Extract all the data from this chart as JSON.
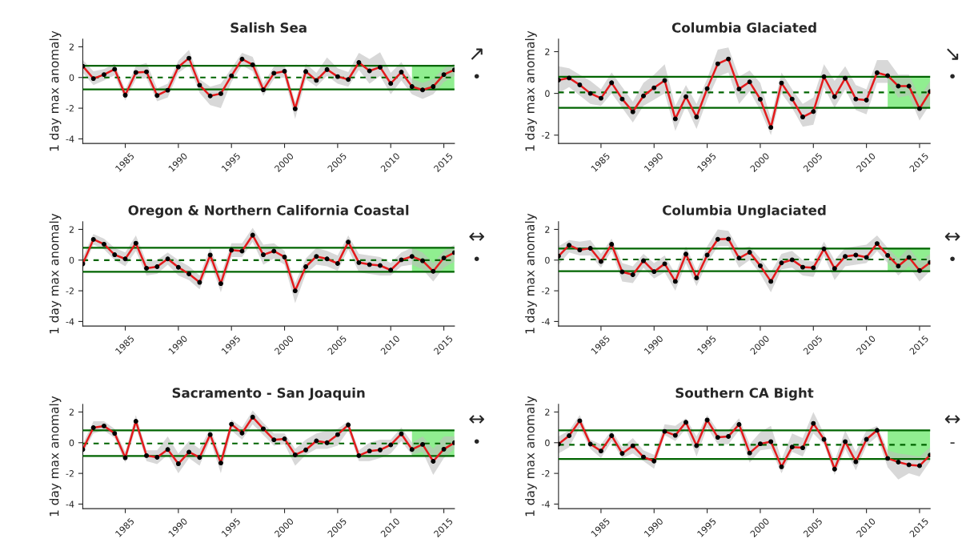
{
  "chart_data": [
    {
      "type": "line",
      "title": "Salish Sea",
      "ylabel": "1 day max anomaly",
      "x": [
        1981,
        1982,
        1983,
        1984,
        1985,
        1986,
        1987,
        1988,
        1989,
        1990,
        1991,
        1992,
        1993,
        1994,
        1995,
        1996,
        1997,
        1998,
        1999,
        2000,
        2001,
        2002,
        2003,
        2004,
        2005,
        2006,
        2007,
        2008,
        2009,
        2010,
        2011,
        2012,
        2013,
        2014,
        2015,
        2016
      ],
      "xlim": [
        1981,
        2016
      ],
      "xticks": [
        1985,
        1990,
        1995,
        2000,
        2005,
        2010,
        2015
      ],
      "ylim": [
        -4.3,
        2.5
      ],
      "yticks": [
        -4,
        -2,
        0,
        2
      ],
      "marker": "circle",
      "grid": false,
      "series": [
        {
          "color": "#e41a1c",
          "values": [
            0.74,
            -0.07,
            0.19,
            0.54,
            -1.15,
            0.33,
            0.37,
            -1.17,
            -0.83,
            0.69,
            1.26,
            -0.5,
            -1.2,
            -1.05,
            0.11,
            1.2,
            0.83,
            -0.8,
            0.28,
            0.41,
            -2.04,
            0.39,
            -0.19,
            0.52,
            0.06,
            -0.13,
            0.98,
            0.43,
            0.67,
            -0.39,
            0.35,
            -0.59,
            -0.81,
            -0.59,
            0.19,
            0.5
          ],
          "upper": [
            1.15,
            0.4,
            0.55,
            0.9,
            -0.8,
            0.75,
            0.95,
            -0.7,
            -0.4,
            1.1,
            1.8,
            -0.1,
            -0.6,
            -0.4,
            0.6,
            1.6,
            1.35,
            -0.4,
            0.7,
            0.8,
            -1.6,
            0.9,
            0.3,
            1.3,
            0.6,
            0.35,
            1.6,
            1.2,
            1.65,
            0.3,
            1.0,
            -0.1,
            -0.35,
            -0.1,
            0.6,
            0.9
          ],
          "lower": [
            0.3,
            -0.5,
            -0.2,
            0.15,
            -1.5,
            -0.1,
            -0.05,
            -1.55,
            -1.3,
            0.3,
            0.8,
            -1.0,
            -1.8,
            -2.0,
            -0.3,
            0.8,
            0.4,
            -1.2,
            -0.1,
            0.0,
            -2.7,
            -0.1,
            -0.6,
            0.1,
            -0.4,
            -0.6,
            0.5,
            -0.4,
            0.1,
            -1.1,
            -0.2,
            -1.1,
            -1.4,
            -1.1,
            -0.3,
            0.1
          ]
        }
      ],
      "ref_lines": [
        {
          "axis": "y",
          "value": 0.76,
          "color": "#006400",
          "line_style": "solid"
        },
        {
          "axis": "y",
          "value": 0,
          "color": "#006400",
          "line_style": "dashed"
        },
        {
          "axis": "y",
          "value": -0.78,
          "color": "#006400",
          "line_style": "solid"
        }
      ],
      "bands": [
        {
          "axis": "x",
          "from": 2012,
          "to": 2016,
          "color": "#90ee90"
        }
      ],
      "annotations": [
        "↗",
        "•"
      ]
    },
    {
      "type": "line",
      "title": "Columbia Glaciated",
      "ylabel": "1 day max anomaly",
      "x": [
        1981,
        1982,
        1983,
        1984,
        1985,
        1986,
        1987,
        1988,
        1989,
        1990,
        1991,
        1992,
        1993,
        1994,
        1995,
        1996,
        1997,
        1998,
        1999,
        2000,
        2001,
        2002,
        2003,
        2004,
        2005,
        2006,
        2007,
        2008,
        2009,
        2010,
        2011,
        2012,
        2013,
        2014,
        2015,
        2016
      ],
      "xlim": [
        1981,
        2016
      ],
      "xticks": [
        1985,
        1990,
        1995,
        2000,
        2005,
        2010,
        2015
      ],
      "ylim": [
        -2.4,
        2.6
      ],
      "yticks": [
        -2,
        0,
        2
      ],
      "marker": "circle",
      "grid": false,
      "series": [
        {
          "color": "#e41a1c",
          "values": [
            0.64,
            0.74,
            0.41,
            0,
            -0.23,
            0.51,
            -0.27,
            -0.88,
            -0.12,
            0.27,
            0.62,
            -1.22,
            -0.16,
            -1.13,
            0.23,
            1.42,
            1.65,
            0.21,
            0.55,
            -0.28,
            -1.63,
            0.5,
            -0.27,
            -1.13,
            -0.87,
            0.8,
            -0.16,
            0.73,
            -0.27,
            -0.32,
            0.99,
            0.85,
            0.35,
            0.35,
            -0.73,
            0.09
          ],
          "upper": [
            1.3,
            1.2,
            0.9,
            0.6,
            0.2,
            1.0,
            0.3,
            -0.4,
            0.5,
            0.9,
            1.4,
            -0.6,
            0.4,
            -0.5,
            0.7,
            2.1,
            2.2,
            0.8,
            1.1,
            0.5,
            -1.2,
            1.0,
            0.2,
            -0.5,
            -0.2,
            1.4,
            0.6,
            1.3,
            0.4,
            0.2,
            1.6,
            1.6,
            0.9,
            0.9,
            -0.2,
            0.6
          ],
          "lower": [
            0.0,
            0.3,
            -0.1,
            -0.5,
            -0.6,
            0.0,
            -0.7,
            -1.4,
            -0.6,
            -0.3,
            0.0,
            -1.8,
            -0.6,
            -1.7,
            -0.3,
            0.8,
            1.0,
            -0.5,
            0.1,
            -0.8,
            -2.0,
            0.0,
            -0.7,
            -1.6,
            -1.5,
            0.3,
            -0.7,
            0.2,
            -0.8,
            -1.0,
            0.5,
            0.5,
            -0.2,
            -0.1,
            -1.3,
            -0.5
          ]
        }
      ],
      "ref_lines": [
        {
          "axis": "y",
          "value": 0.8,
          "color": "#006400",
          "line_style": "solid"
        },
        {
          "axis": "y",
          "value": 0.05,
          "color": "#006400",
          "line_style": "dashed"
        },
        {
          "axis": "y",
          "value": -0.69,
          "color": "#006400",
          "line_style": "solid"
        }
      ],
      "bands": [
        {
          "axis": "x",
          "from": 2012,
          "to": 2016,
          "color": "#90ee90"
        }
      ],
      "annotations": [
        "↘",
        "•"
      ]
    },
    {
      "type": "line",
      "title": "Oregon & Northern California Coastal",
      "ylabel": "1 day max anomaly",
      "x": [
        1981,
        1982,
        1983,
        1984,
        1985,
        1986,
        1987,
        1988,
        1989,
        1990,
        1991,
        1992,
        1993,
        1994,
        1995,
        1996,
        1997,
        1998,
        1999,
        2000,
        2001,
        2002,
        2003,
        2004,
        2005,
        2006,
        2007,
        2008,
        2009,
        2010,
        2011,
        2012,
        2013,
        2014,
        2015,
        2016
      ],
      "xlim": [
        1981,
        2016
      ],
      "xticks": [
        1985,
        1990,
        1995,
        2000,
        2005,
        2010,
        2015
      ],
      "ylim": [
        -4.3,
        2.5
      ],
      "yticks": [
        -4,
        -2,
        0,
        2
      ],
      "marker": "circle",
      "grid": false,
      "series": [
        {
          "color": "#e41a1c",
          "values": [
            -0.24,
            1.35,
            1.04,
            0.35,
            0.08,
            1.1,
            -0.53,
            -0.43,
            0.08,
            -0.47,
            -0.9,
            -1.45,
            0.33,
            -1.53,
            0.65,
            0.59,
            1.63,
            0.35,
            0.59,
            0.2,
            -2.0,
            -0.43,
            0.24,
            0.08,
            -0.22,
            1.18,
            -0.16,
            -0.29,
            -0.35,
            -0.65,
            0.02,
            0.24,
            -0.04,
            -0.73,
            0.14,
            0.49
          ],
          "upper": [
            0.2,
            1.7,
            1.4,
            0.8,
            0.5,
            1.6,
            -0.1,
            0.0,
            0.5,
            0.0,
            -0.4,
            -1.0,
            0.8,
            -1.0,
            1.1,
            1.1,
            2.1,
            1.0,
            1.1,
            0.6,
            -1.5,
            0.1,
            0.8,
            0.6,
            0.3,
            1.6,
            0.4,
            0.3,
            0.2,
            -0.2,
            0.5,
            0.8,
            0.5,
            -0.2,
            0.6,
            1.0
          ],
          "lower": [
            -0.6,
            1.0,
            0.7,
            0.0,
            -0.4,
            0.6,
            -1.0,
            -0.9,
            -0.3,
            -1.0,
            -1.3,
            -1.9,
            -0.1,
            -2.1,
            0.2,
            0.2,
            1.2,
            -0.3,
            0.1,
            -0.3,
            -2.8,
            -0.9,
            -0.3,
            -0.4,
            -0.7,
            0.7,
            -0.8,
            -0.9,
            -1.0,
            -1.0,
            -0.4,
            -0.3,
            -0.6,
            -1.4,
            -0.5,
            -0.1
          ]
        }
      ],
      "ref_lines": [
        {
          "axis": "y",
          "value": 0.8,
          "color": "#006400",
          "line_style": "solid"
        },
        {
          "axis": "y",
          "value": 0,
          "color": "#006400",
          "line_style": "dashed"
        },
        {
          "axis": "y",
          "value": -0.76,
          "color": "#006400",
          "line_style": "solid"
        }
      ],
      "bands": [
        {
          "axis": "x",
          "from": 2012,
          "to": 2016,
          "color": "#90ee90"
        }
      ],
      "annotations": [
        "↔",
        "•"
      ]
    },
    {
      "type": "line",
      "title": "Columbia Unglaciated",
      "ylabel": "1 day max anomaly",
      "x": [
        1981,
        1982,
        1983,
        1984,
        1985,
        1986,
        1987,
        1988,
        1989,
        1990,
        1991,
        1992,
        1993,
        1994,
        1995,
        1996,
        1997,
        1998,
        1999,
        2000,
        2001,
        2002,
        2003,
        2004,
        2005,
        2006,
        2007,
        2008,
        2009,
        2010,
        2011,
        2012,
        2013,
        2014,
        2015,
        2016
      ],
      "xlim": [
        1981,
        2016
      ],
      "xticks": [
        1985,
        1990,
        1995,
        2000,
        2005,
        2010,
        2015
      ],
      "ylim": [
        -4.3,
        2.5
      ],
      "yticks": [
        -4,
        -2,
        0,
        2
      ],
      "marker": "circle",
      "grid": false,
      "series": [
        {
          "color": "#e41a1c",
          "values": [
            0.26,
            0.97,
            0.66,
            0.77,
            -0.09,
            1.03,
            -0.77,
            -0.95,
            -0.04,
            -0.75,
            -0.24,
            -1.39,
            0.39,
            -1.16,
            0.33,
            1.36,
            1.38,
            0.13,
            0.51,
            -0.37,
            -1.39,
            -0.18,
            0.02,
            -0.46,
            -0.5,
            0.73,
            -0.55,
            0.24,
            0.33,
            0.18,
            1.08,
            0.31,
            -0.39,
            0.18,
            -0.68,
            -0.15
          ],
          "upper": [
            0.9,
            1.3,
            1.2,
            1.3,
            0.4,
            1.4,
            -0.2,
            -0.4,
            0.4,
            -0.2,
            0.3,
            -0.9,
            0.9,
            -0.7,
            0.9,
            2.0,
            1.9,
            0.7,
            0.9,
            0.1,
            -0.8,
            0.4,
            0.6,
            0.0,
            -0.1,
            1.2,
            0.0,
            0.8,
            0.9,
            1.0,
            1.6,
            0.8,
            0.1,
            0.8,
            -0.1,
            0.4
          ],
          "lower": [
            -0.3,
            0.5,
            0.3,
            0.3,
            -0.5,
            0.6,
            -1.4,
            -1.5,
            -0.5,
            -1.2,
            -0.8,
            -2.0,
            -0.2,
            -1.7,
            -0.2,
            0.9,
            0.9,
            -0.5,
            0.0,
            -0.9,
            -2.1,
            -0.6,
            -0.5,
            -1.0,
            -1.1,
            0.3,
            -1.3,
            -0.4,
            -0.3,
            -0.2,
            0.6,
            -0.2,
            -1.0,
            -0.4,
            -1.4,
            -0.7
          ]
        }
      ],
      "ref_lines": [
        {
          "axis": "y",
          "value": 0.75,
          "color": "#006400",
          "line_style": "solid"
        },
        {
          "axis": "y",
          "value": 0.04,
          "color": "#006400",
          "line_style": "dashed"
        },
        {
          "axis": "y",
          "value": -0.72,
          "color": "#006400",
          "line_style": "solid"
        }
      ],
      "bands": [
        {
          "axis": "x",
          "from": 2012,
          "to": 2016,
          "color": "#90ee90"
        }
      ],
      "annotations": [
        "↔",
        "•"
      ]
    },
    {
      "type": "line",
      "title": "Sacramento - San Joaquin",
      "ylabel": "1 day max anomaly",
      "x": [
        1981,
        1982,
        1983,
        1984,
        1985,
        1986,
        1987,
        1988,
        1989,
        1990,
        1991,
        1992,
        1993,
        1994,
        1995,
        1996,
        1997,
        1998,
        1999,
        2000,
        2001,
        2002,
        2003,
        2004,
        2005,
        2006,
        2007,
        2008,
        2009,
        2010,
        2011,
        2012,
        2013,
        2014,
        2015,
        2016
      ],
      "xlim": [
        1981,
        2016
      ],
      "xticks": [
        1985,
        1990,
        1995,
        2000,
        2005,
        2010,
        2015
      ],
      "ylim": [
        -4.3,
        2.5
      ],
      "yticks": [
        -4,
        -2,
        0,
        2
      ],
      "marker": "circle",
      "grid": false,
      "series": [
        {
          "color": "#e41a1c",
          "values": [
            -0.44,
            0.98,
            1.09,
            0.61,
            -0.98,
            1.4,
            -0.84,
            -0.95,
            -0.44,
            -1.37,
            -0.61,
            -0.96,
            0.53,
            -1.32,
            1.21,
            0.63,
            1.67,
            0.91,
            0.19,
            0.25,
            -0.79,
            -0.47,
            0.12,
            0,
            0.53,
            1.16,
            -0.84,
            -0.54,
            -0.47,
            -0.14,
            0.58,
            -0.44,
            -0.11,
            -1.21,
            -0.42,
            0
          ],
          "upper": [
            -0.1,
            1.4,
            1.4,
            0.9,
            -0.6,
            1.8,
            -0.5,
            -0.5,
            0.4,
            -0.7,
            0.1,
            -0.4,
            0.9,
            -0.9,
            1.5,
            1.0,
            2.1,
            1.3,
            0.6,
            0.6,
            -0.4,
            0.2,
            0.6,
            0.8,
            0.9,
            1.4,
            -0.5,
            0.0,
            0.2,
            0.2,
            1.0,
            0.0,
            0.4,
            -0.4,
            0.4,
            0.4
          ],
          "lower": [
            -0.7,
            0.6,
            0.8,
            0.3,
            -1.3,
            1.0,
            -1.2,
            -1.4,
            -0.8,
            -2.0,
            -1.0,
            -1.5,
            0.2,
            -2.0,
            0.8,
            0.2,
            1.2,
            0.5,
            -0.2,
            -0.1,
            -1.5,
            -0.8,
            -0.4,
            -0.4,
            -0.2,
            0.8,
            -1.2,
            -1.2,
            -1.0,
            -0.7,
            0.1,
            -0.8,
            -0.6,
            -2.1,
            -1.0,
            -0.4
          ]
        }
      ],
      "ref_lines": [
        {
          "axis": "y",
          "value": 0.81,
          "color": "#006400",
          "line_style": "solid"
        },
        {
          "axis": "y",
          "value": -0.05,
          "color": "#006400",
          "line_style": "dashed"
        },
        {
          "axis": "y",
          "value": -0.86,
          "color": "#006400",
          "line_style": "solid"
        }
      ],
      "bands": [
        {
          "axis": "x",
          "from": 2012,
          "to": 2016,
          "color": "#90ee90"
        }
      ],
      "annotations": [
        "↔",
        "•"
      ]
    },
    {
      "type": "line",
      "title": "Southern CA Bight",
      "ylabel": "1 day max anomaly",
      "x": [
        1981,
        1982,
        1983,
        1984,
        1985,
        1986,
        1987,
        1988,
        1989,
        1990,
        1991,
        1992,
        1993,
        1994,
        1995,
        1996,
        1997,
        1998,
        1999,
        2000,
        2001,
        2002,
        2003,
        2004,
        2005,
        2006,
        2007,
        2008,
        2009,
        2010,
        2011,
        2012,
        2013,
        2014,
        2015,
        2016
      ],
      "xlim": [
        1981,
        2016
      ],
      "xticks": [
        1985,
        1990,
        1995,
        2000,
        2005,
        2010,
        2015
      ],
      "ylim": [
        -4.3,
        2.5
      ],
      "yticks": [
        -4,
        -2,
        0,
        2
      ],
      "marker": "circle",
      "grid": false,
      "series": [
        {
          "color": "#e41a1c",
          "values": [
            -0.09,
            0.46,
            1.43,
            -0.09,
            -0.54,
            0.46,
            -0.7,
            -0.2,
            -0.93,
            -1.2,
            0.74,
            0.48,
            1.33,
            -0.19,
            1.48,
            0.35,
            0.41,
            1.19,
            -0.67,
            -0.07,
            0.07,
            -1.57,
            -0.28,
            -0.33,
            1.26,
            0.22,
            -1.72,
            0.07,
            -1.24,
            0.22,
            0.81,
            -1.02,
            -1.26,
            -1.44,
            -1.5,
            -0.8
          ],
          "upper": [
            0.4,
            0.8,
            1.8,
            0.2,
            -0.1,
            0.8,
            -0.3,
            0.3,
            -0.5,
            -0.8,
            1.2,
            1.1,
            1.6,
            0.4,
            1.8,
            0.8,
            0.8,
            1.6,
            -0.1,
            0.7,
            1.1,
            -1.1,
            0.6,
            0.3,
            2.0,
            0.6,
            -1.2,
            0.8,
            -0.6,
            0.8,
            1.1,
            -0.5,
            -0.7,
            -0.8,
            -0.9,
            -0.3
          ],
          "lower": [
            -0.7,
            -0.3,
            1.0,
            -0.4,
            -1.0,
            0.1,
            -1.0,
            -0.7,
            -1.2,
            -1.7,
            0.5,
            0.1,
            0.9,
            -0.9,
            1.0,
            -0.1,
            -0.1,
            0.8,
            -1.3,
            -0.5,
            -0.4,
            -2.0,
            -0.6,
            -0.9,
            0.6,
            -0.1,
            -2.1,
            -0.4,
            -1.8,
            -0.2,
            0.4,
            -1.6,
            -2.4,
            -2.0,
            -2.2,
            -1.2
          ]
        }
      ],
      "ref_lines": [
        {
          "axis": "y",
          "value": 0.81,
          "color": "#006400",
          "line_style": "solid"
        },
        {
          "axis": "y",
          "value": -0.13,
          "color": "#006400",
          "line_style": "dashed"
        },
        {
          "axis": "y",
          "value": -1.06,
          "color": "#006400",
          "line_style": "solid"
        }
      ],
      "bands": [
        {
          "axis": "x",
          "from": 2012,
          "to": 2016,
          "color": "#90ee90"
        }
      ],
      "annotations": [
        "↔",
        "-"
      ]
    }
  ]
}
